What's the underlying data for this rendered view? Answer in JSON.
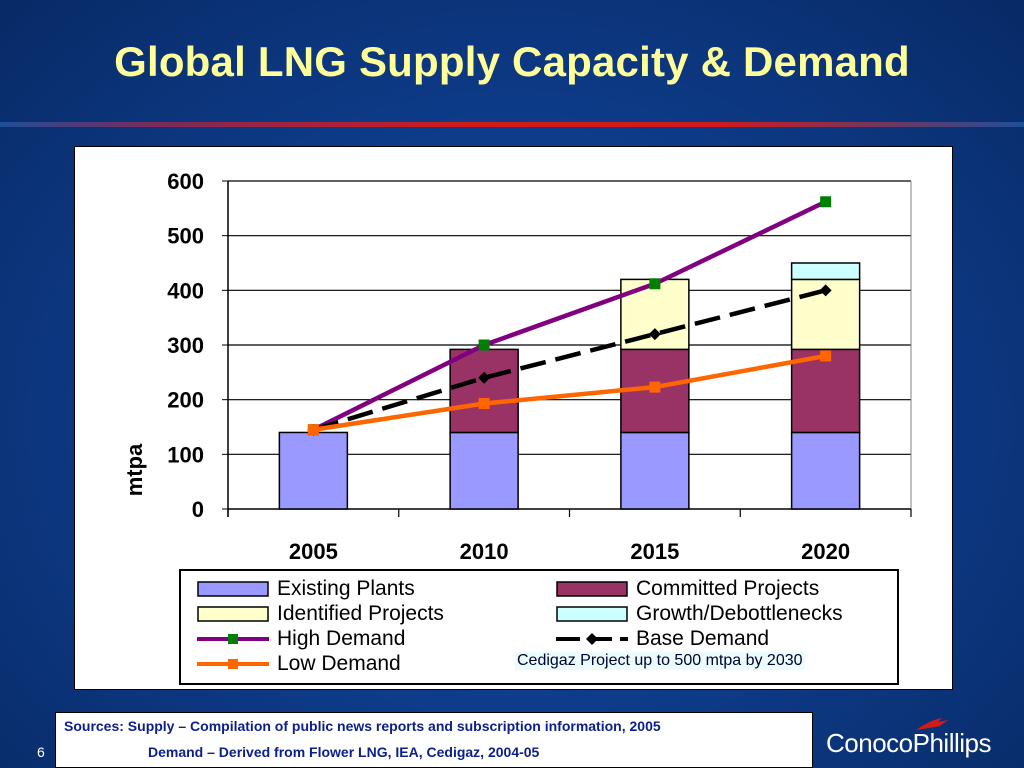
{
  "title": "Global LNG Supply Capacity & Demand",
  "colors": {
    "existing": "#9999ff",
    "committed": "#993366",
    "identified": "#ffffcc",
    "growth": "#ccffff",
    "high_demand": "#800080",
    "high_marker": "#008000",
    "base_demand": "#000000",
    "low_demand": "#ff6600"
  },
  "chart_data": {
    "type": "bar",
    "stacked": true,
    "categories": [
      "2005",
      "2010",
      "2015",
      "2020"
    ],
    "ylabel": "mtpa",
    "ylim": [
      0,
      600
    ],
    "yticks": [
      "0",
      "100",
      "200",
      "300",
      "400",
      "500",
      "600"
    ],
    "grid": true,
    "legend_position": "bottom",
    "series": [
      {
        "name": "Existing Plants",
        "kind": "bar",
        "values": [
          140,
          140,
          140,
          140
        ]
      },
      {
        "name": "Committed Projects",
        "kind": "bar",
        "values": [
          0,
          152,
          152,
          152
        ]
      },
      {
        "name": "Identified Projects",
        "kind": "bar",
        "values": [
          0,
          0,
          128,
          128
        ]
      },
      {
        "name": "Growth/Debottlenecks",
        "kind": "bar",
        "values": [
          0,
          0,
          0,
          30
        ]
      },
      {
        "name": "High Demand",
        "kind": "line",
        "values": [
          145,
          300,
          412,
          562
        ]
      },
      {
        "name": "Base Demand",
        "kind": "line",
        "values": [
          145,
          240,
          320,
          400
        ]
      },
      {
        "name": "Low Demand",
        "kind": "line",
        "values": [
          145,
          193,
          223,
          280
        ]
      }
    ],
    "annotation": "Cedigaz Project up to 500 mtpa by 2030"
  },
  "sources": {
    "line1": "Sources: Supply  – Compilation of public news reports and subscription information, 2005",
    "line2": "Demand – Derived from Flower LNG, IEA, Cedigaz, 2004-05"
  },
  "page_number": "6",
  "logo": {
    "name": "ConocoPhillips",
    "icon": "conocophillips-star-icon"
  }
}
